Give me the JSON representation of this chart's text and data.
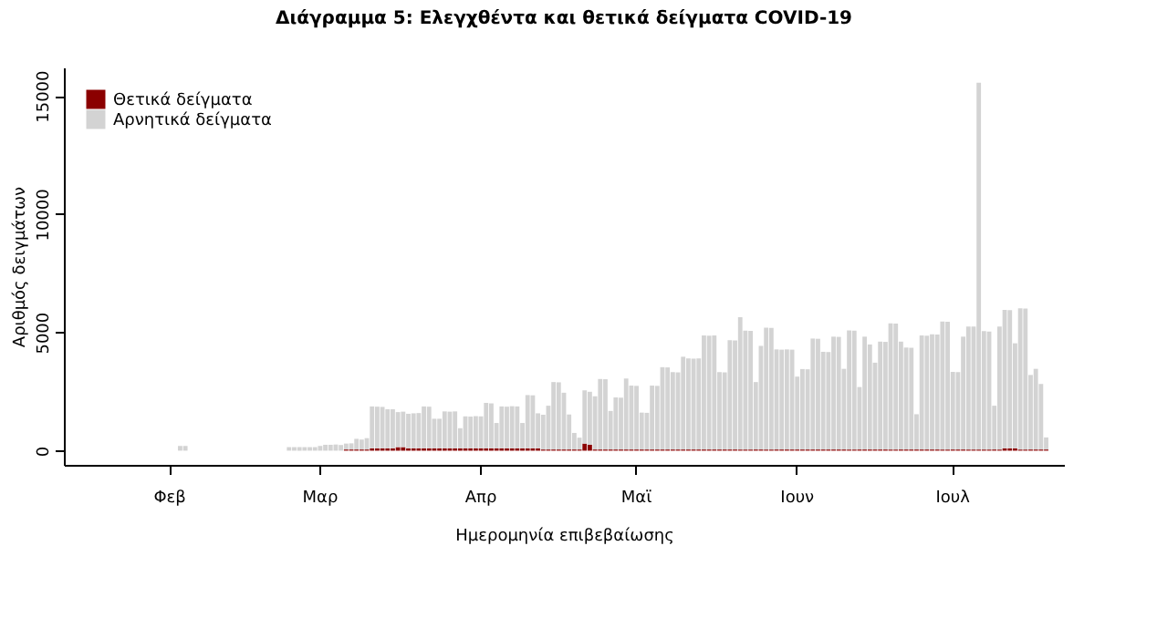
{
  "chart_data": {
    "type": "bar",
    "stacked": true,
    "title": "Διάγραμμα 5: Ελεγχθέντα και θετικά δείγματα COVID-19",
    "xlabel": "Ημερομηνία επιβεβαίωσης",
    "ylabel": "Αριθμός δειγμάτων",
    "legend": "top left",
    "grid": false,
    "categories": [
      null,
      null,
      null,
      null,
      null,
      null,
      null,
      null,
      null,
      null,
      null,
      null,
      null,
      null,
      null,
      null,
      null,
      null,
      null,
      null,
      "Φεβ",
      null,
      null,
      null,
      null,
      null,
      null,
      null,
      null,
      null,
      null,
      null,
      null,
      null,
      null,
      null,
      null,
      null,
      null,
      null,
      null,
      null,
      null,
      null,
      null,
      null,
      null,
      null,
      null,
      "Μαρ",
      null,
      null,
      null,
      null,
      null,
      null,
      null,
      null,
      null,
      null,
      null,
      null,
      null,
      null,
      null,
      null,
      null,
      null,
      null,
      null,
      null,
      null,
      null,
      null,
      null,
      null,
      null,
      null,
      null,
      null,
      "Απρ",
      null,
      null,
      null,
      null,
      null,
      null,
      null,
      null,
      null,
      null,
      null,
      null,
      null,
      null,
      null,
      null,
      null,
      null,
      null,
      null,
      null,
      null,
      null,
      null,
      null,
      null,
      null,
      null,
      null,
      "Μαϊ",
      null,
      null,
      null,
      null,
      null,
      null,
      null,
      null,
      null,
      null,
      null,
      null,
      null,
      null,
      null,
      null,
      null,
      null,
      null,
      null,
      null,
      null,
      null,
      null,
      null,
      null,
      null,
      null,
      null,
      null,
      "Ιουν",
      null,
      null,
      null,
      null,
      null,
      null,
      null,
      null,
      null,
      null,
      null,
      null,
      null,
      null,
      null,
      null,
      null,
      null,
      null,
      null,
      null,
      null,
      null,
      null,
      null,
      null,
      null,
      null,
      null,
      "Ιουλ",
      null,
      null,
      null,
      null,
      null,
      null,
      null,
      null,
      null,
      null,
      null,
      null,
      null,
      null,
      null,
      null,
      null,
      null,
      null,
      null,
      null
    ],
    "series": [
      {
        "name": "Θετικά δείγματα",
        "color": "#8b0000",
        "values": [
          null,
          null,
          null,
          null,
          null,
          null,
          null,
          null,
          null,
          null,
          null,
          null,
          null,
          null,
          null,
          null,
          null,
          null,
          null,
          null,
          null,
          null,
          0,
          0,
          null,
          null,
          null,
          null,
          null,
          null,
          null,
          null,
          null,
          null,
          null,
          null,
          null,
          null,
          null,
          null,
          null,
          null,
          null,
          0,
          0,
          0,
          0,
          0,
          0,
          0,
          0,
          0,
          0,
          0,
          50,
          50,
          50,
          50,
          50,
          100,
          100,
          100,
          100,
          100,
          150,
          150,
          100,
          100,
          100,
          100,
          100,
          100,
          100,
          100,
          100,
          100,
          100,
          100,
          100,
          100,
          100,
          100,
          100,
          100,
          100,
          100,
          100,
          100,
          100,
          100,
          100,
          100,
          50,
          50,
          50,
          50,
          50,
          50,
          50,
          50,
          300,
          250,
          50,
          50,
          50,
          50,
          50,
          50,
          50,
          50,
          50,
          50,
          50,
          50,
          50,
          50,
          50,
          50,
          50,
          50,
          50,
          50,
          50,
          50,
          50,
          50,
          50,
          50,
          50,
          50,
          50,
          50,
          50,
          50,
          50,
          50,
          50,
          50,
          50,
          50,
          50,
          50,
          50,
          50,
          50,
          50,
          50,
          50,
          50,
          50,
          50,
          50,
          50,
          50,
          50,
          50,
          50,
          50,
          50,
          50,
          50,
          50,
          50,
          50,
          50,
          50,
          50,
          50,
          50,
          50,
          50,
          50,
          50,
          50,
          50,
          50,
          50,
          50,
          50,
          50,
          50,
          100,
          100,
          100,
          50,
          50,
          50,
          50,
          50,
          50,
          null,
          null,
          null
        ]
      },
      {
        "name": "Αρνητικά δείγματα",
        "color": "#d3d3d3",
        "values": [
          null,
          null,
          null,
          null,
          null,
          null,
          null,
          null,
          null,
          null,
          null,
          null,
          null,
          null,
          null,
          null,
          null,
          null,
          null,
          null,
          null,
          null,
          200,
          200,
          null,
          null,
          null,
          null,
          null,
          null,
          null,
          null,
          null,
          null,
          null,
          null,
          null,
          null,
          null,
          null,
          null,
          null,
          null,
          150,
          150,
          150,
          150,
          150,
          150,
          200,
          250,
          250,
          260,
          240,
          250,
          260,
          450,
          420,
          480,
          1770,
          1760,
          1750,
          1650,
          1650,
          1480,
          1500,
          1460,
          1480,
          1490,
          1770,
          1760,
          1250,
          1250,
          1560,
          1550,
          1560,
          850,
          1350,
          1340,
          1360,
          1350,
          1920,
          1900,
          1070,
          1770,
          1760,
          1780,
          1770,
          1070,
          2250,
          2240,
          1480,
          1470,
          1850,
          2850,
          2840,
          2400,
          1480,
          700,
          500,
          2250,
          2240,
          2250,
          2980,
          2970,
          1630,
          2200,
          2190,
          3000,
          2700,
          2690,
          1560,
          1550,
          2700,
          2690,
          3480,
          3470,
          3270,
          3260,
          3920,
          3850,
          3840,
          3850,
          4820,
          4810,
          4820,
          3270,
          3260,
          4620,
          4610,
          5590,
          5020,
          5010,
          2850,
          4380,
          5150,
          5140,
          4230,
          4220,
          4230,
          4220,
          3080,
          3400,
          3390,
          4690,
          4680,
          4130,
          4120,
          4770,
          4760,
          3410,
          5030,
          5020,
          2640,
          4770,
          4440,
          3670,
          4560,
          4550,
          5330,
          5320,
          4560,
          4310,
          4300,
          1490,
          4820,
          4810,
          4870,
          4860,
          5410,
          5400,
          3280,
          3270,
          4770,
          5200,
          5200,
          15500,
          5000,
          4990,
          1850,
          5200,
          5850,
          5840,
          4440,
          5970,
          5960,
          3150,
          3410,
          2770,
          510,
          null,
          null,
          null
        ]
      }
    ],
    "ylim": [
      -600,
      16200
    ],
    "yticks": [
      0,
      5000,
      10000,
      15000
    ]
  }
}
